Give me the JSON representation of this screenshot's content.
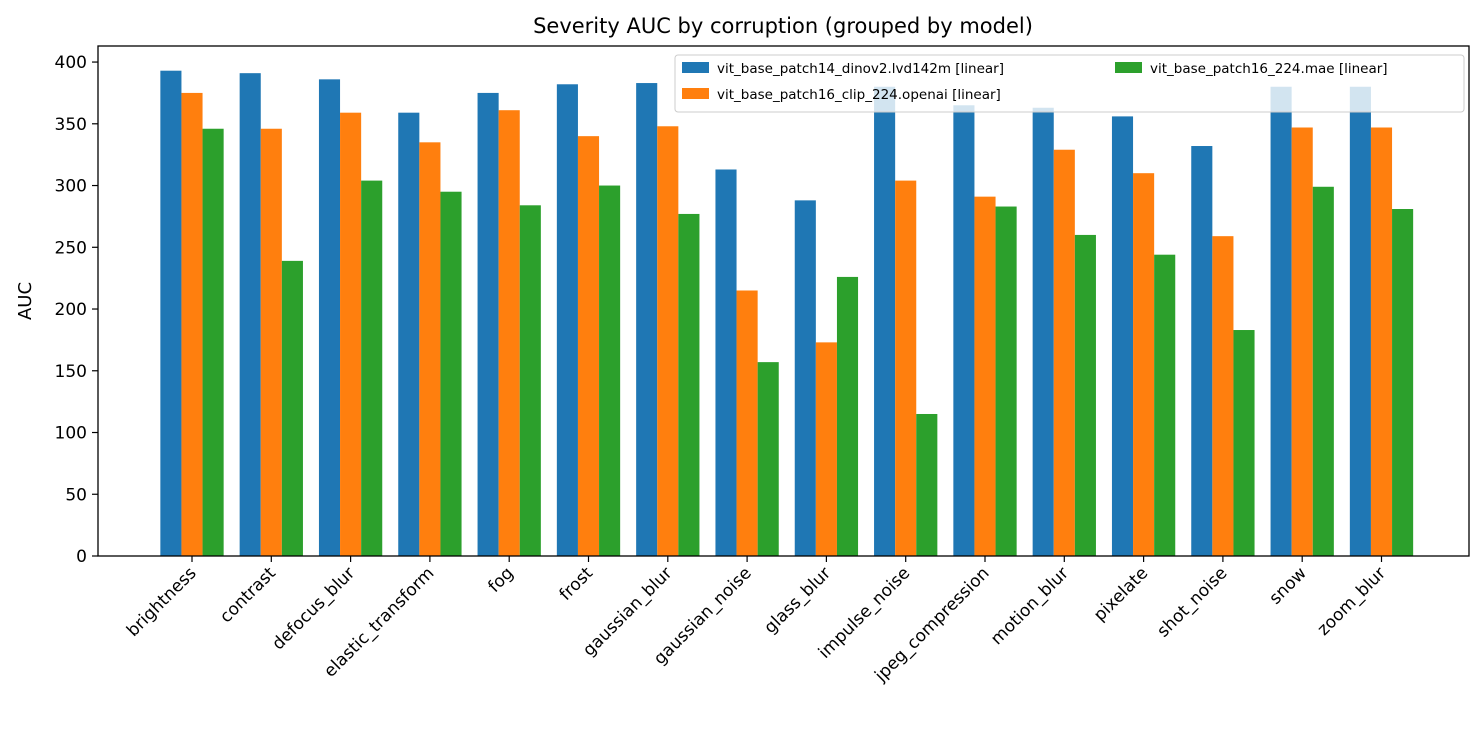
{
  "chart_data": {
    "type": "bar",
    "title": "Severity AUC by corruption (grouped by model)",
    "xlabel": "",
    "ylabel": "AUC",
    "ylim": [
      0,
      413
    ],
    "yticks": [
      0,
      50,
      100,
      150,
      200,
      250,
      300,
      350,
      400
    ],
    "grid": false,
    "legend_position": "top-right",
    "categories": [
      "brightness",
      "contrast",
      "defocus_blur",
      "elastic_transform",
      "fog",
      "frost",
      "gaussian_blur",
      "gaussian_noise",
      "glass_blur",
      "impulse_noise",
      "jpeg_compression",
      "motion_blur",
      "pixelate",
      "shot_noise",
      "snow",
      "zoom_blur"
    ],
    "series": [
      {
        "name": "vit_base_patch14_dinov2.lvd142m [linear]",
        "color": "#1f77b4",
        "values": [
          393,
          391,
          386,
          359,
          375,
          382,
          383,
          313,
          288,
          380,
          365,
          363,
          356,
          332,
          380,
          380
        ]
      },
      {
        "name": "vit_base_patch16_clip_224.openai [linear]",
        "color": "#ff7f0e",
        "values": [
          375,
          346,
          359,
          335,
          361,
          340,
          348,
          215,
          173,
          304,
          291,
          329,
          310,
          259,
          347,
          347
        ]
      },
      {
        "name": "vit_base_patch16_224.mae [linear]",
        "color": "#2ca02c",
        "values": [
          346,
          239,
          304,
          295,
          284,
          300,
          277,
          157,
          226,
          115,
          283,
          260,
          244,
          183,
          299,
          281
        ]
      }
    ]
  }
}
